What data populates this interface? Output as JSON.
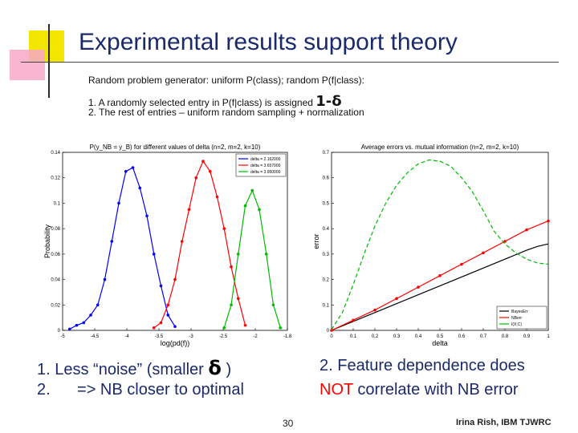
{
  "slide": {
    "title": "Experimental results support theory",
    "intro": "Random problem generator: uniform P(class); random P(f|class):",
    "list_item1_text": "1. A randomly selected entry in P(f|class) is assigned",
    "list_item1_formula": "1-δ",
    "list_item2_text": "2. The rest of entries – uniform random sampling + normalization",
    "left_caption_1a": "1. Less “noise” (smaller",
    "left_caption_1_symbol": "δ",
    "left_caption_1b": ")",
    "left_caption_2": "2.      => NB closer to optimal",
    "right_caption_1": "2. Feature dependence does",
    "right_caption_2_red": "NOT",
    "right_caption_2_rest": "correlate with NB error",
    "page_number": "30",
    "author": "Irina Rish, IBM TJWRC",
    "colors": {
      "title": "#1b2a6b",
      "accent_red": "#ff0000"
    }
  },
  "chart_data": [
    {
      "type": "line",
      "title": "P(y_NB = y_B) for different values of delta (n=2, m=2, k=10)",
      "xlabel": "log(pd(f))",
      "ylabel": "Probability",
      "xlim": [
        -5,
        -1.8
      ],
      "ylim": [
        0,
        0.14
      ],
      "x_ticks": [
        "-5",
        "-4.5",
        "-4",
        "-3.5",
        "-3",
        "-2.5",
        "-2",
        "-1.8"
      ],
      "y_ticks": [
        "0",
        "0.02",
        "0.04",
        "0.06",
        "0.08",
        "0.1",
        "0.12",
        "0.14"
      ],
      "legend": "top-right",
      "series": [
        {
          "name": "delta = 2.162000",
          "color": "#0000ff",
          "x": [
            -4.9,
            -4.8,
            -4.7,
            -4.6,
            -4.5,
            -4.4,
            -4.3,
            -4.2,
            -4.1,
            -4.0,
            -3.9,
            -3.8,
            -3.7,
            -3.6,
            -3.5,
            -3.4
          ],
          "y": [
            0.001,
            0.004,
            0.006,
            0.012,
            0.02,
            0.04,
            0.07,
            0.1,
            0.125,
            0.128,
            0.112,
            0.09,
            0.06,
            0.035,
            0.012,
            0.003
          ]
        },
        {
          "name": "delta = 3.657000",
          "color": "#ff0000",
          "x": [
            -3.7,
            -3.6,
            -3.5,
            -3.4,
            -3.3,
            -3.2,
            -3.1,
            -3.0,
            -2.9,
            -2.8,
            -2.7,
            -2.6,
            -2.5,
            -2.4
          ],
          "y": [
            0.002,
            0.006,
            0.02,
            0.04,
            0.07,
            0.095,
            0.12,
            0.133,
            0.125,
            0.105,
            0.08,
            0.05,
            0.025,
            0.004
          ]
        },
        {
          "name": "delta = 3.950000",
          "color": "#00bb00",
          "x": [
            -2.7,
            -2.6,
            -2.5,
            -2.4,
            -2.3,
            -2.2,
            -2.1,
            -2.0,
            -1.9
          ],
          "y": [
            0.002,
            0.02,
            0.06,
            0.098,
            0.11,
            0.095,
            0.06,
            0.02,
            0.002
          ]
        }
      ]
    },
    {
      "type": "line",
      "title": "Average errors vs. mutual information (n=2, m=2, k=10)",
      "xlabel": "delta",
      "ylabel": "error",
      "xlim": [
        0,
        1
      ],
      "ylim": [
        0,
        0.7
      ],
      "x_ticks": [
        "0",
        "0.1",
        "0.2",
        "0.3",
        "0.4",
        "0.5",
        "0.6",
        "0.7",
        "0.8",
        "0.9",
        "1"
      ],
      "y_ticks": [
        "0",
        "0.1",
        "0.2",
        "0.3",
        "0.4",
        "0.5",
        "0.6",
        "0.7"
      ],
      "legend": "bottom-right",
      "series": [
        {
          "name": "BayesErr",
          "color": "#000000",
          "x": [
            0,
            0.2,
            0.4,
            0.6,
            0.8,
            0.9,
            0.95,
            1.0
          ],
          "y": [
            0,
            0.07,
            0.14,
            0.21,
            0.28,
            0.315,
            0.33,
            0.34
          ]
        },
        {
          "name": "NBerr",
          "color": "#ff0000",
          "x": [
            0,
            0.1,
            0.2,
            0.3,
            0.4,
            0.5,
            0.6,
            0.7,
            0.8,
            0.9,
            1.0
          ],
          "y": [
            0,
            0.04,
            0.08,
            0.125,
            0.17,
            0.215,
            0.26,
            0.305,
            0.35,
            0.395,
            0.43
          ]
        },
        {
          "name": "I(X;C)",
          "color": "#00bb00",
          "x": [
            0,
            0.05,
            0.1,
            0.15,
            0.2,
            0.25,
            0.3,
            0.35,
            0.4,
            0.45,
            0.5,
            0.55,
            0.6,
            0.65,
            0.7,
            0.75,
            0.8,
            0.85,
            0.9,
            0.95,
            1.0
          ],
          "y": [
            0.003,
            0.07,
            0.18,
            0.3,
            0.41,
            0.5,
            0.57,
            0.62,
            0.655,
            0.67,
            0.665,
            0.645,
            0.6,
            0.545,
            0.47,
            0.39,
            0.34,
            0.305,
            0.28,
            0.265,
            0.26
          ]
        }
      ]
    }
  ]
}
